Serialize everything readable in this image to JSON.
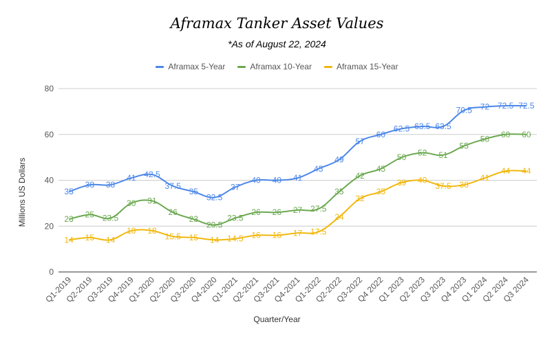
{
  "chart_data": {
    "type": "line",
    "title": "Aframax Tanker Asset Values",
    "subtitle": "*As of August 22, 2024",
    "xlabel": "Quarter/Year",
    "ylabel": "Millions US Dollars",
    "ylim": [
      0,
      80
    ],
    "yticks": [
      0,
      20,
      40,
      60,
      80
    ],
    "grid": true,
    "legend_position": "top",
    "categories": [
      "Q1-2019",
      "Q2-2019",
      "Q3-2019",
      "Q4-2019",
      "Q1-2020",
      "Q2-2020",
      "Q3-2020",
      "Q4-2020",
      "Q1-2021",
      "Q2-2021",
      "Q3-2021",
      "Q4-2021",
      "Q1-2022",
      "Q2-2022",
      "Q3-2022",
      "Q4 2022",
      "Q1 2023",
      "Q2 2023",
      "Q3 2023",
      "Q4 2023",
      "Q1 2024",
      "Q2 2024",
      "Q3 2024"
    ],
    "series": [
      {
        "name": "Aframax 5-Year",
        "color": "#4a86e8",
        "values": [
          35,
          38,
          38,
          41,
          42.5,
          37.5,
          35,
          32.5,
          37,
          40,
          40,
          41,
          45,
          49,
          57,
          60,
          62.5,
          63.5,
          63.5,
          70.5,
          72,
          72.5,
          72.5
        ]
      },
      {
        "name": "Aframax 10-Year",
        "color": "#6aa84f",
        "values": [
          23,
          25,
          23.5,
          30,
          31,
          26,
          23,
          20.5,
          23.5,
          26,
          26,
          27,
          27.5,
          35,
          42,
          45,
          50,
          52,
          51,
          55,
          58,
          60,
          60
        ]
      },
      {
        "name": "Aframax 15-Year",
        "color": "#f1b70b",
        "values": [
          14,
          15,
          14,
          18,
          18,
          15.5,
          15,
          14,
          14.5,
          16,
          16,
          17,
          17.5,
          24,
          32,
          35,
          39,
          40,
          37.5,
          38,
          41,
          44,
          44
        ]
      }
    ]
  }
}
